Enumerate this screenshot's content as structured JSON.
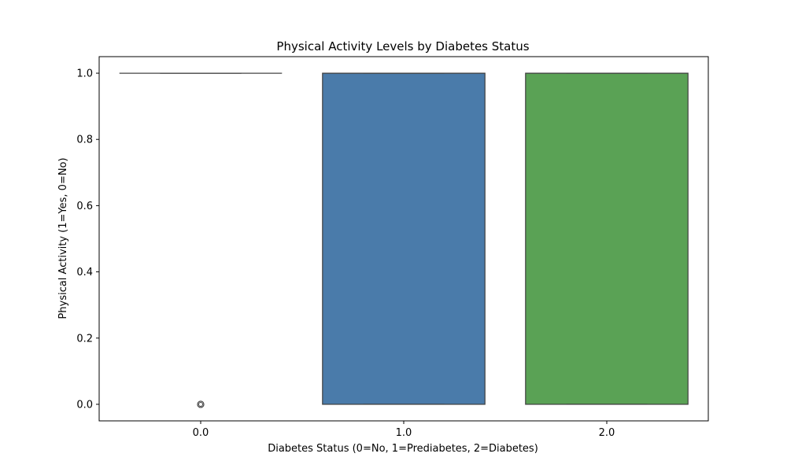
{
  "chart_data": {
    "type": "box",
    "title": "Physical Activity Levels by Diabetes Status",
    "xlabel": "Diabetes Status (0=No, 1=Prediabetes, 2=Diabetes)",
    "ylabel": "Physical Activity (1=Yes, 0=No)",
    "categories": [
      "0.0",
      "1.0",
      "2.0"
    ],
    "ylim": [
      -0.05,
      1.05
    ],
    "yticks": [
      0.0,
      0.2,
      0.4,
      0.6,
      0.8,
      1.0
    ],
    "ytick_labels": [
      "0.0",
      "0.2",
      "0.4",
      "0.6",
      "0.8",
      "1.0"
    ],
    "grid": false,
    "boxes": [
      {
        "category": "0.0",
        "q1": 1.0,
        "median": 1.0,
        "q3": 1.0,
        "whisker_low": 1.0,
        "whisker_high": 1.0,
        "outliers": [
          0.0
        ],
        "color": "#d62728"
      },
      {
        "category": "1.0",
        "q1": 0.0,
        "median": 1.0,
        "q3": 1.0,
        "whisker_low": 0.0,
        "whisker_high": 1.0,
        "outliers": [],
        "color": "#4a7baa"
      },
      {
        "category": "2.0",
        "q1": 0.0,
        "median": 1.0,
        "q3": 1.0,
        "whisker_low": 0.0,
        "whisker_high": 1.0,
        "outliers": [],
        "color": "#5aa255"
      }
    ]
  }
}
